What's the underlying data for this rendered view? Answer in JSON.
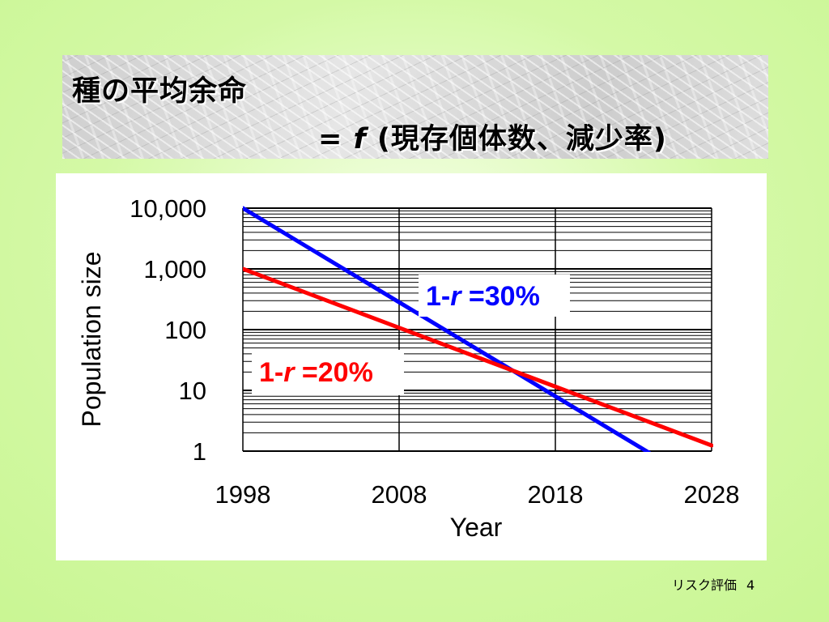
{
  "slide": {
    "title_line1": "種の平均余命",
    "title_line2_prefix": "= ",
    "title_line2_f": "f",
    "title_line2_suffix": " (現存個体数、減少率)",
    "footer_label": "リスク評価",
    "page_number": "4"
  },
  "colors": {
    "background": "#c6f58e",
    "series_30": "#0000ff",
    "series_20": "#ff0000"
  },
  "chart_data": {
    "type": "line",
    "title": "",
    "xlabel": "Year",
    "ylabel": "Population size",
    "x_ticks": [
      "1998",
      "2008",
      "2018",
      "2028"
    ],
    "y_ticks": [
      "1",
      "10",
      "100",
      "1,000",
      "10,000"
    ],
    "xlim": [
      1998,
      2028
    ],
    "ylim": [
      1,
      10000
    ],
    "y_scale": "log",
    "grid": true,
    "series": [
      {
        "name": "1-r=30%",
        "label_prefix": "1-",
        "label_var": "r",
        "label_suffix": "=30%",
        "color": "#0000ff",
        "x": [
          1998,
          2008,
          2018,
          2024
        ],
        "y": [
          10000,
          282.5,
          7.98,
          0.94
        ]
      },
      {
        "name": "1-r=20%",
        "label_prefix": "1-",
        "label_var": "r",
        "label_suffix": "=20%",
        "color": "#ff0000",
        "x": [
          1998,
          2008,
          2018,
          2028
        ],
        "y": [
          1000,
          107.4,
          11.5,
          1.24
        ]
      }
    ]
  }
}
